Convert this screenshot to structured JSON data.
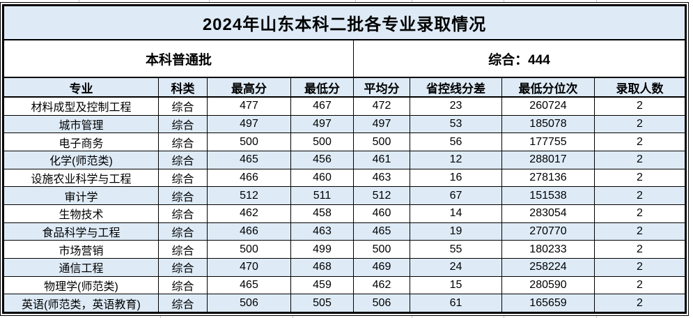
{
  "title": "2024年山东本科二批各专业录取情况",
  "subheader": {
    "batch_label": "本科普通批",
    "control_line_label": "综合：444"
  },
  "table": {
    "columns": [
      "专业",
      "科类",
      "最高分",
      "最低分",
      "平均分",
      "省控线分差",
      "最低分位次",
      "录取人数"
    ],
    "rows": [
      [
        "材料成型及控制工程",
        "综合",
        "477",
        "467",
        "472",
        "23",
        "260724",
        "2"
      ],
      [
        "城市管理",
        "综合",
        "497",
        "497",
        "497",
        "53",
        "185078",
        "2"
      ],
      [
        "电子商务",
        "综合",
        "500",
        "500",
        "500",
        "56",
        "177755",
        "2"
      ],
      [
        "化学(师范类)",
        "综合",
        "465",
        "456",
        "461",
        "12",
        "288017",
        "2"
      ],
      [
        "设施农业科学与工程",
        "综合",
        "466",
        "460",
        "463",
        "16",
        "278136",
        "2"
      ],
      [
        "审计学",
        "综合",
        "512",
        "511",
        "512",
        "67",
        "151538",
        "2"
      ],
      [
        "生物技术",
        "综合",
        "462",
        "458",
        "460",
        "14",
        "283054",
        "2"
      ],
      [
        "食品科学与工程",
        "综合",
        "466",
        "463",
        "465",
        "19",
        "270770",
        "2"
      ],
      [
        "市场营销",
        "综合",
        "500",
        "499",
        "500",
        "55",
        "180233",
        "2"
      ],
      [
        "通信工程",
        "综合",
        "470",
        "468",
        "469",
        "24",
        "258224",
        "2"
      ],
      [
        "物理学(师范类)",
        "综合",
        "465",
        "459",
        "462",
        "15",
        "280590",
        "2"
      ],
      [
        "英语(师范类，英语教育)",
        "综合",
        "506",
        "505",
        "506",
        "61",
        "165659",
        "2"
      ]
    ]
  },
  "colors": {
    "band": "#DEEBF7",
    "border": "#000000",
    "gridline_stub": "#c8c8c8"
  }
}
